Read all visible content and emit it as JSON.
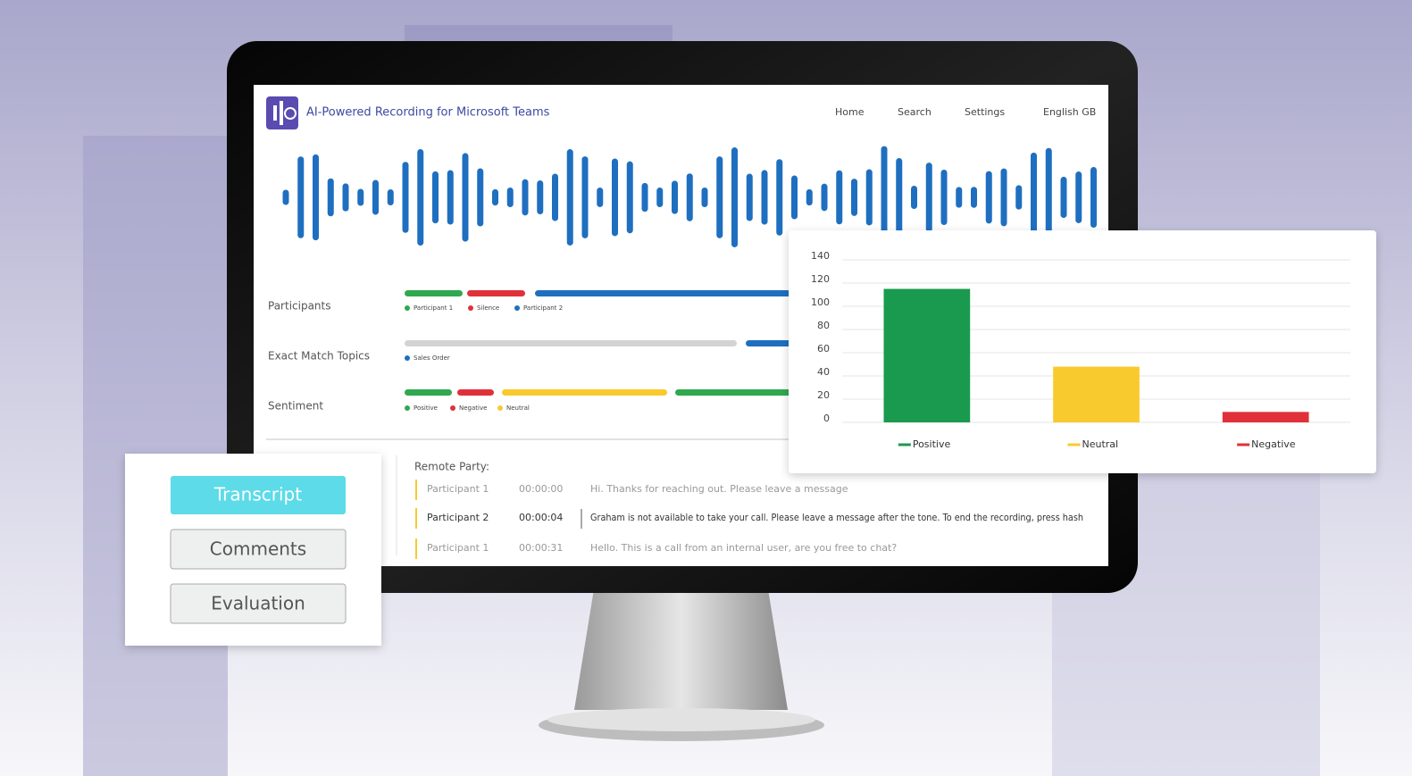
{
  "header": {
    "title": "AI-Powered Recording for Microsoft Teams",
    "nav": [
      "Home",
      "Search",
      "Settings",
      "English GB"
    ]
  },
  "timeline": [
    {
      "label": "Participants",
      "legend": [
        "Participant 1",
        "Silence",
        "Participant 2"
      ]
    },
    {
      "label": "Exact Match Topics",
      "legend": [
        "Sales Order"
      ]
    },
    {
      "label": "Sentiment",
      "legend": [
        "Positive",
        "Negative",
        "Neutral"
      ]
    }
  ],
  "transcript": {
    "heading": "Remote Party:",
    "rows": [
      [
        "Participant 1",
        "00:00:00",
        "Hi. Thanks for reaching out. Please leave a message"
      ],
      [
        "Participant 2",
        "00:00:04",
        "Graham is not available to take your call. Please leave a message after the tone. To end the recording, press hash"
      ],
      [
        "Participant 1",
        "00:00:31",
        "Hello. This is a call from an internal user, are you free to chat?"
      ]
    ]
  },
  "tabs": [
    "Transcript",
    "Comments",
    "Evaluation"
  ],
  "chart_data": {
    "type": "bar",
    "categories": [
      "Positive",
      "Neutral",
      "Negative"
    ],
    "values": [
      115,
      48,
      9
    ],
    "colors": [
      "#1a9a4e",
      "#f9ca2e",
      "#e0313a"
    ],
    "ylim": [
      0,
      140
    ],
    "yticks": [
      0,
      20,
      40,
      60,
      80,
      100,
      120,
      140
    ],
    "grid": true
  }
}
